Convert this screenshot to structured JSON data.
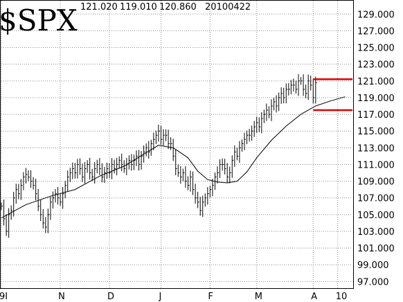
{
  "chart_data": {
    "type": "ohlc",
    "title": "$SPX",
    "header_values": [
      "121.020",
      "119.010",
      "120.860",
      "20100422"
    ],
    "ylim": [
      96.2,
      130.6
    ],
    "y_ticks": [
      "129.000",
      "127.000",
      "125.000",
      "123.000",
      "121.000",
      "119.000",
      "117.000",
      "115.000",
      "113.000",
      "111.000",
      "109.000",
      "107.000",
      "105.000",
      "103.000",
      "101.000",
      "99.000",
      "97.000"
    ],
    "x_tick_labels": [
      {
        "label": "9I",
        "x": 0
      },
      {
        "label": "N",
        "x": 24
      },
      {
        "label": "D",
        "x": 44
      },
      {
        "label": "J",
        "x": 65
      },
      {
        "label": "F",
        "x": 85
      },
      {
        "label": "M",
        "x": 104
      },
      {
        "label": "A",
        "x": 127
      },
      {
        "label": "10",
        "x": 137
      }
    ],
    "x_range": [
      0,
      143
    ],
    "close": [
      106.0,
      104.5,
      103.0,
      105.0,
      105.5,
      107.0,
      108.0,
      107.5,
      108.5,
      109.5,
      109.8,
      109.5,
      109.0,
      108.5,
      107.5,
      106.0,
      105.0,
      104.0,
      103.5,
      105.0,
      106.5,
      107.0,
      107.5,
      107.0,
      106.5,
      107.5,
      108.5,
      109.5,
      110.0,
      110.5,
      110.0,
      111.0,
      110.5,
      109.5,
      110.5,
      111.0,
      110.0,
      109.5,
      110.5,
      111.0,
      110.5,
      109.5,
      110.0,
      110.5,
      110.0,
      111.0,
      110.5,
      111.0,
      111.5,
      111.0,
      110.5,
      111.0,
      111.5,
      111.0,
      111.5,
      112.0,
      111.0,
      112.0,
      112.5,
      113.0,
      112.5,
      113.5,
      114.0,
      114.5,
      115.0,
      114.0,
      114.5,
      114.5,
      113.5,
      113.5,
      112.0,
      110.5,
      110.0,
      109.5,
      110.0,
      109.0,
      108.5,
      109.5,
      108.0,
      107.0,
      106.5,
      105.5,
      106.5,
      107.0,
      107.5,
      108.0,
      108.5,
      109.5,
      110.0,
      111.0,
      111.0,
      110.5,
      109.5,
      110.0,
      111.5,
      112.5,
      112.0,
      113.0,
      113.5,
      114.0,
      114.5,
      114.5,
      115.0,
      115.5,
      116.0,
      115.5,
      116.5,
      117.0,
      117.5,
      117.0,
      118.0,
      118.5,
      118.0,
      119.0,
      119.5,
      119.0,
      120.0,
      120.0,
      120.5,
      120.5,
      120.0,
      121.0,
      121.0,
      120.0,
      119.5,
      121.0,
      120.5,
      119.0,
      120.8
    ],
    "moving_average": {
      "points": [
        [
          0,
          104.6
        ],
        [
          10,
          106.2
        ],
        [
          20,
          107.2
        ],
        [
          30,
          108.0
        ],
        [
          40,
          109.6
        ],
        [
          50,
          110.8
        ],
        [
          60,
          112.6
        ],
        [
          64,
          113.3
        ],
        [
          70,
          113.0
        ],
        [
          76,
          111.8
        ],
        [
          80,
          110.2
        ],
        [
          84,
          109.2
        ],
        [
          88,
          108.9
        ],
        [
          92,
          108.8
        ],
        [
          96,
          109.0
        ],
        [
          100,
          110.1
        ],
        [
          104,
          111.8
        ],
        [
          110,
          113.9
        ],
        [
          116,
          115.6
        ],
        [
          122,
          117.0
        ],
        [
          128,
          118.0
        ],
        [
          134,
          118.6
        ],
        [
          140,
          119.1
        ]
      ]
    },
    "resistance": {
      "value": 121.2,
      "x": [
        127,
        143
      ]
    },
    "support": {
      "value": 117.5,
      "x": [
        127,
        143
      ]
    },
    "colors": {
      "bars": "#000000",
      "ma": "#000000",
      "levels": "#dd0000"
    }
  }
}
